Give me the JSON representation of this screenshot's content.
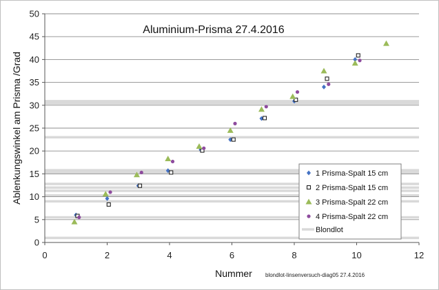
{
  "chart_data": {
    "type": "scatter",
    "title": "Aluminium-Prisma  27.4.2016",
    "xlabel": "Nummer",
    "ylabel": "Ablenkungswinkel am Prisma /Grad",
    "footnote": "blondlot-linsenversuch-diag05  27.4.2016",
    "xlim": [
      0,
      12
    ],
    "ylim": [
      0,
      50
    ],
    "xticks": [
      0,
      2,
      4,
      6,
      8,
      10,
      12
    ],
    "yticks": [
      0,
      5,
      10,
      15,
      20,
      25,
      30,
      35,
      40,
      45,
      50
    ],
    "grid": true,
    "legend_position": "bottom-right",
    "series": [
      {
        "name": "1  Prisma-Spalt 15 cm",
        "marker": "diamond",
        "color": "#4472c4",
        "points": [
          [
            1.0,
            6.0
          ],
          [
            2.0,
            9.6
          ],
          [
            3.0,
            12.4
          ],
          [
            3.95,
            15.7
          ],
          [
            5.0,
            20.3
          ],
          [
            5.95,
            22.5
          ],
          [
            6.95,
            27.1
          ],
          [
            8.0,
            30.9
          ],
          [
            8.95,
            34.0
          ],
          [
            9.95,
            40.0
          ]
        ]
      },
      {
        "name": "2  Prisma-Spalt 15 cm",
        "marker": "square-open",
        "color": "#222222",
        "points": [
          [
            1.05,
            5.8
          ],
          [
            2.05,
            8.3
          ],
          [
            3.05,
            12.4
          ],
          [
            4.05,
            15.3
          ],
          [
            5.05,
            20.1
          ],
          [
            6.05,
            22.5
          ],
          [
            7.05,
            27.2
          ],
          [
            8.05,
            31.2
          ],
          [
            9.05,
            35.8
          ],
          [
            10.05,
            40.9
          ]
        ]
      },
      {
        "name": "3 Prisma-Spalt 22 cm",
        "marker": "triangle",
        "color": "#9bbb59",
        "points": [
          [
            0.95,
            4.5
          ],
          [
            1.95,
            10.6
          ],
          [
            2.95,
            14.8
          ],
          [
            3.95,
            18.3
          ],
          [
            4.95,
            21.0
          ],
          [
            5.95,
            24.5
          ],
          [
            6.95,
            29.1
          ],
          [
            7.95,
            31.9
          ],
          [
            8.95,
            37.5
          ],
          [
            9.95,
            39.2
          ],
          [
            10.95,
            43.5
          ]
        ]
      },
      {
        "name": "4 Prisma-Spalt 22 cm",
        "marker": "circle",
        "color": "#8e4b9e",
        "points": [
          [
            1.1,
            5.5
          ],
          [
            2.1,
            11.0
          ],
          [
            3.1,
            15.3
          ],
          [
            4.1,
            17.7
          ],
          [
            5.1,
            20.6
          ],
          [
            6.1,
            26.0
          ],
          [
            7.1,
            29.7
          ],
          [
            8.1,
            32.9
          ],
          [
            9.1,
            34.6
          ],
          [
            10.1,
            39.8
          ]
        ]
      }
    ],
    "blondlot": {
      "name": "Blondlot",
      "color": "#d9d9d9",
      "values": [
        1.0,
        5.5,
        9.0,
        10.3,
        11.3,
        12.0,
        12.8,
        15.3,
        15.8,
        23.0,
        30.4,
        30.9
      ]
    }
  }
}
